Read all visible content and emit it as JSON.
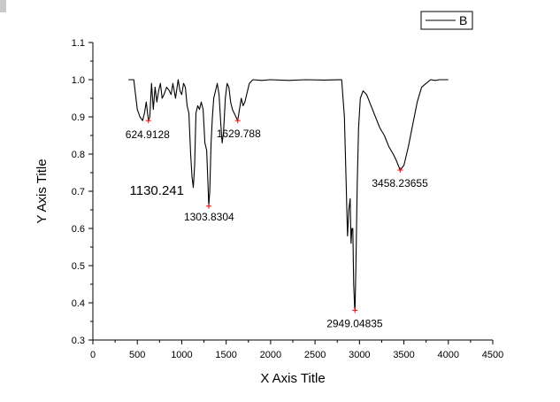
{
  "chart_data": {
    "type": "line",
    "xlabel": "X Axis Title",
    "ylabel": "Y Axis Title",
    "xlim": [
      0,
      4500
    ],
    "ylim": [
      0.3,
      1.1
    ],
    "x_ticks": [
      0,
      500,
      1000,
      1500,
      2000,
      2500,
      3000,
      3500,
      4000,
      4500
    ],
    "y_ticks": [
      0.3,
      0.4,
      0.5,
      0.6,
      0.7,
      0.8,
      0.9,
      1.0,
      1.1
    ],
    "x_tick_labels": [
      "0",
      "500",
      "1000",
      "1500",
      "2000",
      "2500",
      "3000",
      "3500",
      "4000",
      "4500"
    ],
    "y_tick_labels": [
      "0.3",
      "0.4",
      "0.5",
      "0.6",
      "0.7",
      "0.8",
      "0.9",
      "1.0",
      "1.1"
    ],
    "grid": false,
    "legend_position": "top-right",
    "series": [
      {
        "name": "B",
        "color": "#000000",
        "x": [
          400,
          460,
          480,
          500,
          530,
          560,
          580,
          600,
          625,
          640,
          660,
          680,
          700,
          720,
          740,
          760,
          780,
          800,
          830,
          860,
          880,
          900,
          930,
          960,
          980,
          1000,
          1020,
          1040,
          1060,
          1080,
          1100,
          1115,
          1130,
          1145,
          1160,
          1180,
          1200,
          1220,
          1240,
          1260,
          1280,
          1295,
          1304,
          1315,
          1330,
          1345,
          1360,
          1380,
          1400,
          1420,
          1440,
          1455,
          1470,
          1490,
          1510,
          1530,
          1550,
          1570,
          1590,
          1610,
          1630,
          1650,
          1670,
          1690,
          1710,
          1730,
          1760,
          1800,
          1900,
          2000,
          2200,
          2400,
          2600,
          2800,
          2830,
          2850,
          2865,
          2880,
          2895,
          2905,
          2915,
          2925,
          2935,
          2945,
          2950,
          2960,
          2975,
          2990,
          3010,
          3040,
          3080,
          3130,
          3180,
          3230,
          3280,
          3330,
          3380,
          3420,
          3458,
          3500,
          3550,
          3600,
          3650,
          3700,
          3750,
          3800,
          3850,
          3900,
          3950,
          4000
        ],
        "y": [
          1.0,
          1.0,
          0.96,
          0.92,
          0.9,
          0.89,
          0.91,
          0.94,
          0.89,
          0.9,
          0.99,
          0.92,
          0.98,
          0.94,
          0.97,
          0.99,
          0.95,
          0.96,
          0.98,
          0.97,
          0.96,
          0.99,
          0.95,
          1.0,
          0.97,
          0.96,
          0.99,
          0.98,
          0.93,
          0.91,
          0.8,
          0.74,
          0.71,
          0.77,
          0.91,
          0.93,
          0.92,
          0.94,
          0.92,
          0.83,
          0.81,
          0.72,
          0.66,
          0.7,
          0.83,
          0.9,
          0.95,
          0.97,
          0.99,
          0.96,
          0.88,
          0.83,
          0.86,
          0.95,
          0.99,
          0.98,
          0.94,
          0.92,
          0.91,
          0.9,
          0.89,
          0.92,
          0.95,
          0.93,
          0.94,
          0.96,
          0.99,
          1.0,
          0.998,
          1.0,
          0.998,
          1.0,
          0.999,
          1.0,
          0.9,
          0.72,
          0.58,
          0.65,
          0.68,
          0.56,
          0.6,
          0.6,
          0.45,
          0.39,
          0.38,
          0.5,
          0.72,
          0.87,
          0.95,
          0.97,
          0.96,
          0.93,
          0.9,
          0.87,
          0.85,
          0.82,
          0.8,
          0.78,
          0.757,
          0.77,
          0.82,
          0.88,
          0.94,
          0.98,
          0.99,
          1.0,
          0.998,
          1.0,
          1.0,
          1.0
        ]
      }
    ],
    "peak_markers": [
      {
        "x": 624.9128,
        "y": 0.89,
        "label": "624.9128"
      },
      {
        "x": 1130.241,
        "y": 0.71,
        "label": "1130.241"
      },
      {
        "x": 1303.8304,
        "y": 0.66,
        "label": "1303.8304"
      },
      {
        "x": 1629.788,
        "y": 0.89,
        "label": "1629.788"
      },
      {
        "x": 2949.04835,
        "y": 0.38,
        "label": "2949.04835"
      },
      {
        "x": 3458.23655,
        "y": 0.757,
        "label": "3458.23655"
      }
    ],
    "marker_color": "#ff0000"
  }
}
